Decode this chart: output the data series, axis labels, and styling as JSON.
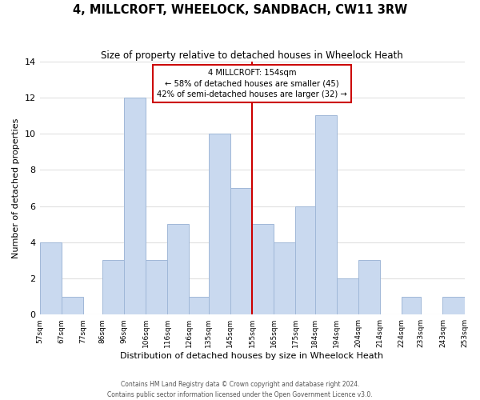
{
  "title": "4, MILLCROFT, WHEELOCK, SANDBACH, CW11 3RW",
  "subtitle": "Size of property relative to detached houses in Wheelock Heath",
  "xlabel": "Distribution of detached houses by size in Wheelock Heath",
  "ylabel": "Number of detached properties",
  "bar_edges": [
    57,
    67,
    77,
    86,
    96,
    106,
    116,
    126,
    135,
    145,
    155,
    165,
    175,
    184,
    194,
    204,
    214,
    224,
    233,
    243,
    253
  ],
  "bar_heights": [
    4,
    1,
    0,
    3,
    12,
    3,
    5,
    1,
    10,
    7,
    5,
    4,
    6,
    11,
    2,
    3,
    0,
    1,
    0,
    1
  ],
  "bar_color": "#c9d9ef",
  "bar_edgecolor": "#a0b8d8",
  "reference_line_x": 155,
  "reference_line_color": "#cc0000",
  "annotation_title": "4 MILLCROFT: 154sqm",
  "annotation_line1": "← 58% of detached houses are smaller (45)",
  "annotation_line2": "42% of semi-detached houses are larger (32) →",
  "annotation_box_edgecolor": "#cc0000",
  "annotation_box_facecolor": "#ffffff",
  "ylim": [
    0,
    14
  ],
  "yticks": [
    0,
    2,
    4,
    6,
    8,
    10,
    12,
    14
  ],
  "footer_line1": "Contains HM Land Registry data © Crown copyright and database right 2024.",
  "footer_line2": "Contains public sector information licensed under the Open Government Licence v3.0.",
  "background_color": "#ffffff",
  "grid_color": "#e0e0e0"
}
